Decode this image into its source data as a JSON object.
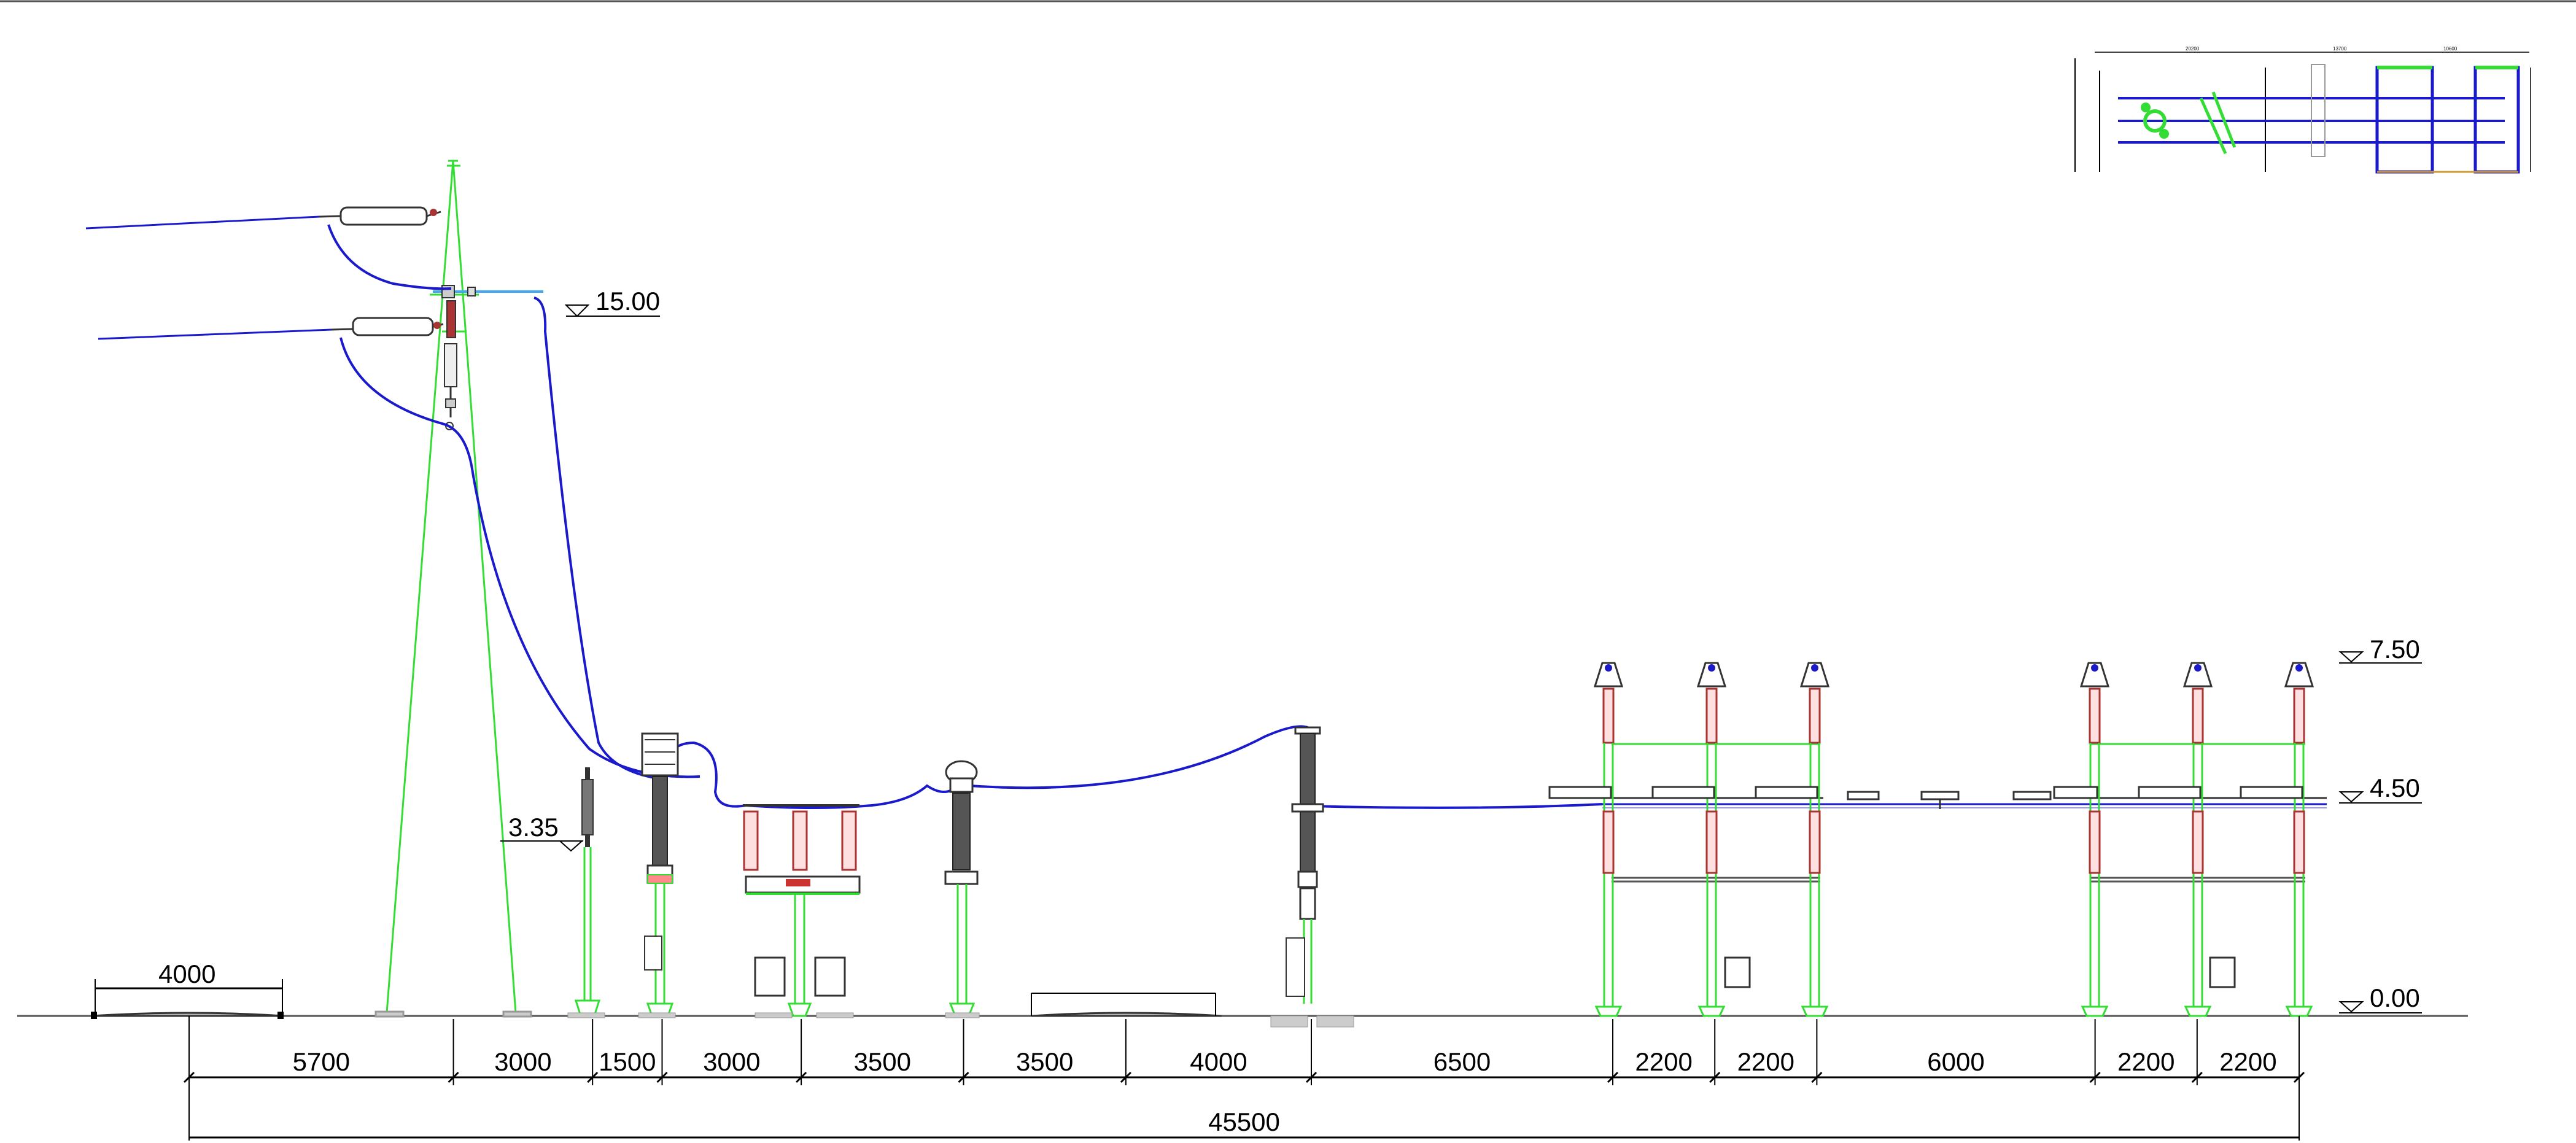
{
  "drawing": {
    "title": "",
    "colors": {
      "structure": "#33dd33",
      "conductor": "#1a1acc",
      "insulator": "#a01818",
      "equipment": "#333333",
      "dimension": "#000000",
      "accent": "#3fa9f5"
    }
  },
  "elevations": {
    "top": "15.00",
    "upper": "7.50",
    "middle": "4.50",
    "arrester": "3.35",
    "ground": "0.00"
  },
  "dimensions": {
    "road_width": "4000",
    "total": "45500",
    "segments": [
      "5700",
      "3000",
      "1500",
      "3000",
      "3500",
      "3500",
      "4000",
      "6500",
      "2200",
      "2200",
      "6000",
      "2200",
      "2200"
    ]
  },
  "inset_plan": {
    "labels": [
      "20200",
      "13700",
      "10600"
    ]
  }
}
